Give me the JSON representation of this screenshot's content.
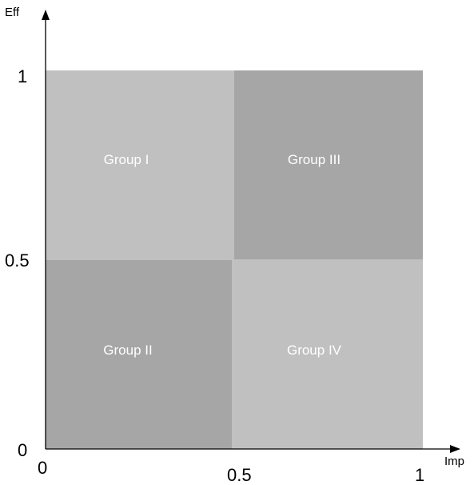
{
  "axes": {
    "x_label": "Imp",
    "y_label": "Eff",
    "x_ticks": [
      "0",
      "0.5",
      "1"
    ],
    "y_ticks": [
      "1",
      "0.5",
      "0"
    ]
  },
  "quadrants": [
    {
      "label": "Group I",
      "color": "#c0c0c0"
    },
    {
      "label": "Group III",
      "color": "#a6a6a6"
    },
    {
      "label": "Group II",
      "color": "#a6a6a6"
    },
    {
      "label": "Group IV",
      "color": "#c0c0c0"
    }
  ],
  "colors": {
    "axis": "#000000",
    "label_text": "#ffffff"
  }
}
